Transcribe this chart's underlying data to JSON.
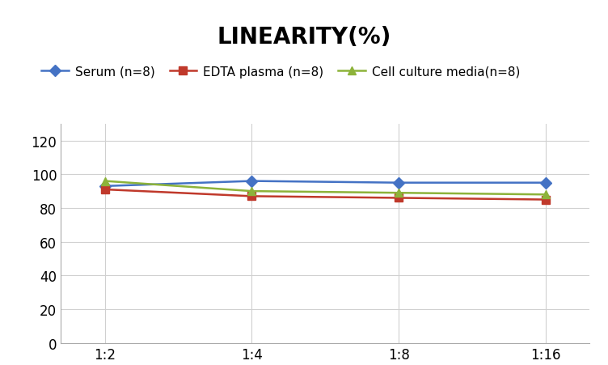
{
  "title": "LINEARITY(%)",
  "x_labels": [
    "1:2",
    "1:4",
    "1:8",
    "1:16"
  ],
  "x_positions": [
    0,
    1,
    2,
    3
  ],
  "series": [
    {
      "label": "Serum (n=8)",
      "values": [
        93,
        96,
        95,
        95
      ],
      "color": "#4472C4",
      "marker": "D",
      "linewidth": 1.8,
      "markersize": 7
    },
    {
      "label": "EDTA plasma (n=8)",
      "values": [
        91,
        87,
        86,
        85
      ],
      "color": "#C0392B",
      "marker": "s",
      "linewidth": 1.8,
      "markersize": 7
    },
    {
      "label": "Cell culture media(n=8)",
      "values": [
        96,
        90,
        89,
        88
      ],
      "color": "#8DB33A",
      "marker": "^",
      "linewidth": 1.8,
      "markersize": 7
    }
  ],
  "ylim": [
    0,
    130
  ],
  "yticks": [
    0,
    20,
    40,
    60,
    80,
    100,
    120
  ],
  "background_color": "#FFFFFF",
  "grid_color": "#D0D0D0",
  "title_fontsize": 20,
  "legend_fontsize": 11,
  "tick_fontsize": 12
}
